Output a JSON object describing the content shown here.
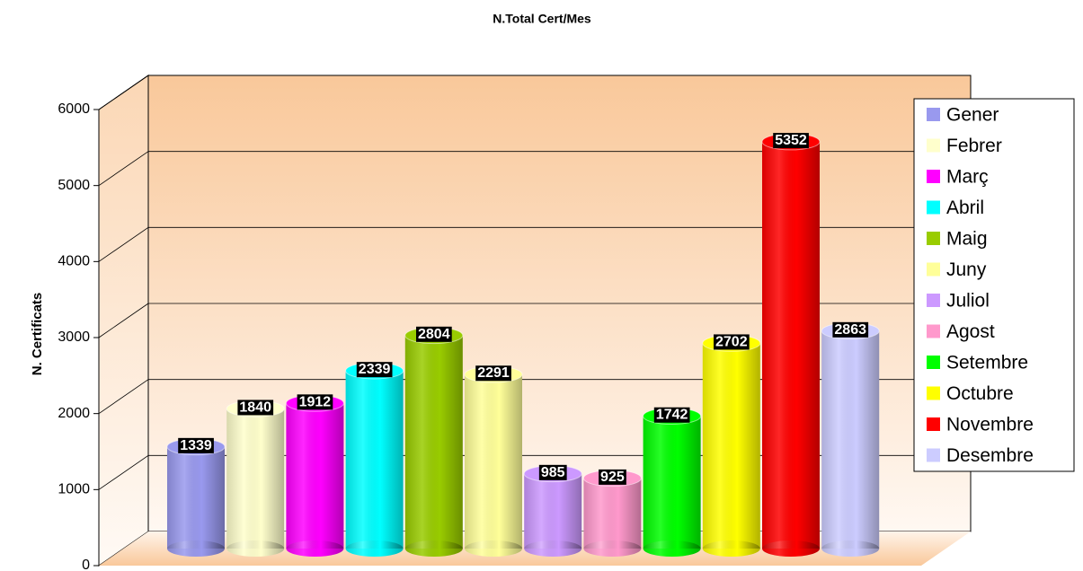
{
  "chart_data": {
    "type": "bar",
    "title": "N.Total Cert/Mes",
    "y_label": "N.  Certificats",
    "categories": [
      "Gener",
      "Febrer",
      "Març",
      "Abril",
      "Maig",
      "Juny",
      "Juliol",
      "Agost",
      "Setembre",
      "Octubre",
      "Novembre",
      "Desembre"
    ],
    "values": [
      1339,
      1840,
      1912,
      2339,
      2804,
      2291,
      985,
      925,
      1742,
      2702,
      5352,
      2863
    ],
    "colors": [
      "#9999ee",
      "#ffffcc",
      "#ff00ff",
      "#00ffff",
      "#99cc00",
      "#ffff99",
      "#cc99ff",
      "#ff99cc",
      "#00ff00",
      "#ffff00",
      "#ff0000",
      "#ccccff"
    ],
    "ylim": [
      0,
      6000
    ],
    "yticks": [
      0,
      1000,
      2000,
      3000,
      4000,
      5000,
      6000
    ],
    "grid": true,
    "legend": "right"
  }
}
